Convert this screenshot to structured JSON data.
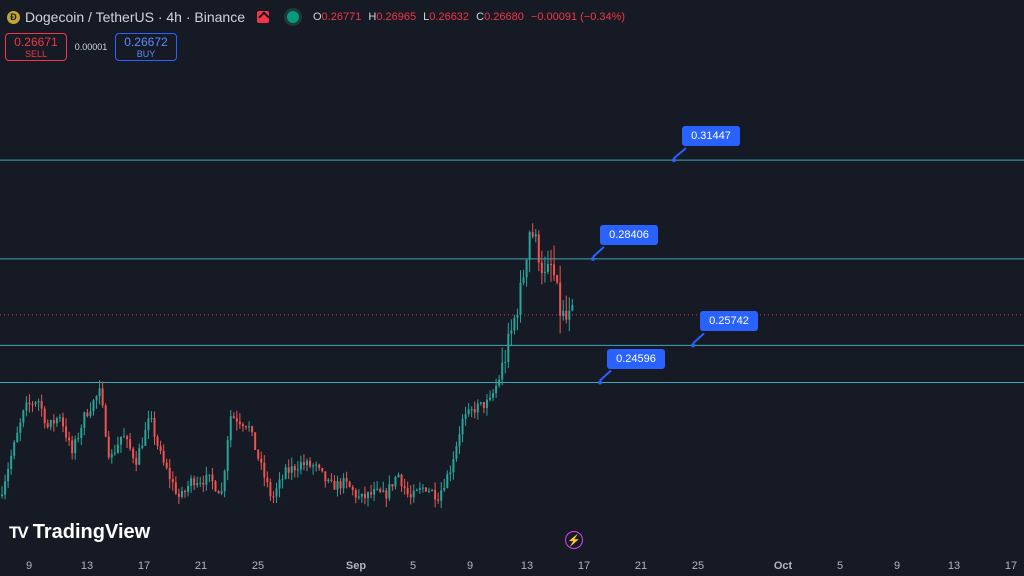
{
  "header": {
    "title": "Dogecoin / TetherUS · 4h · Binance",
    "ohlc": [
      {
        "key": "O",
        "value": "0.26771"
      },
      {
        "key": "H",
        "value": "0.26965"
      },
      {
        "key": "L",
        "value": "0.26632"
      },
      {
        "key": "C",
        "value": "0.26680"
      }
    ],
    "change": "−0.00091 (−0.34%)"
  },
  "trade": {
    "sell_price": "0.26671",
    "sell_label": "SELL",
    "spread": "0.00001",
    "buy_price": "0.26672",
    "buy_label": "BUY"
  },
  "brand": "TradingView",
  "colors": {
    "background": "#161a25",
    "up": "#26a69a",
    "down": "#ef5350",
    "levels": "#3fb7c9",
    "label": "#2962ff"
  },
  "chart_data": {
    "type": "candlestick",
    "symbol": "DOGEUSDT",
    "interval": "4h",
    "x_tick_labels": [
      "9",
      "13",
      "17",
      "21",
      "25",
      "Sep",
      "5",
      "9",
      "13",
      "17",
      "21",
      "25",
      "Oct",
      "5",
      "9",
      "13",
      "17"
    ],
    "price_range": [
      0.205,
      0.335
    ],
    "current_price": 0.2668,
    "horizontal_levels": [
      {
        "price": 0.31447,
        "label": "0.31447"
      },
      {
        "price": 0.28406,
        "label": "0.28406"
      },
      {
        "price": 0.25742,
        "label": "0.25742"
      },
      {
        "price": 0.24596,
        "label": "0.24596"
      }
    ],
    "close_path": [
      [
        0,
        0.211
      ],
      [
        10,
        0.222
      ],
      [
        25,
        0.238
      ],
      [
        38,
        0.241
      ],
      [
        48,
        0.232
      ],
      [
        60,
        0.236
      ],
      [
        72,
        0.224
      ],
      [
        85,
        0.236
      ],
      [
        100,
        0.243
      ],
      [
        110,
        0.222
      ],
      [
        122,
        0.23
      ],
      [
        136,
        0.222
      ],
      [
        150,
        0.235
      ],
      [
        162,
        0.222
      ],
      [
        180,
        0.21
      ],
      [
        192,
        0.216
      ],
      [
        210,
        0.216
      ],
      [
        222,
        0.212
      ],
      [
        230,
        0.236
      ],
      [
        248,
        0.233
      ],
      [
        262,
        0.219
      ],
      [
        272,
        0.21
      ],
      [
        285,
        0.218
      ],
      [
        300,
        0.221
      ],
      [
        315,
        0.22
      ],
      [
        330,
        0.214
      ],
      [
        345,
        0.215
      ],
      [
        360,
        0.21
      ],
      [
        375,
        0.212
      ],
      [
        385,
        0.211
      ],
      [
        398,
        0.218
      ],
      [
        410,
        0.21
      ],
      [
        425,
        0.214
      ],
      [
        438,
        0.211
      ],
      [
        450,
        0.219
      ],
      [
        462,
        0.234
      ],
      [
        475,
        0.238
      ],
      [
        490,
        0.24
      ],
      [
        500,
        0.248
      ],
      [
        512,
        0.262
      ],
      [
        522,
        0.276
      ],
      [
        530,
        0.294
      ],
      [
        537,
        0.288
      ],
      [
        545,
        0.278
      ],
      [
        552,
        0.282
      ],
      [
        560,
        0.268
      ],
      [
        566,
        0.265
      ],
      [
        574,
        0.2668
      ]
    ]
  }
}
